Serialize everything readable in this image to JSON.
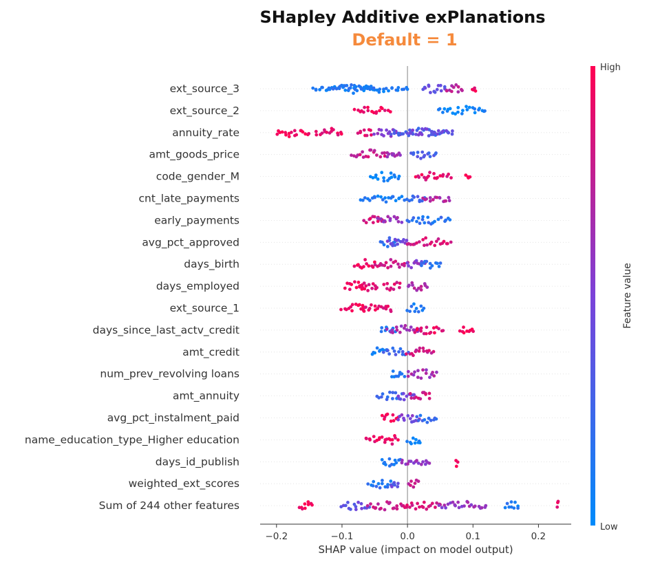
{
  "title": "SHapley Additive exPlanations",
  "subtitle": "Default = 1",
  "colors": {
    "title": "#111111",
    "subtitle": "#f58a3c",
    "high": "#ff0052",
    "low": "#008bfb",
    "zero_line": "#999999",
    "grid": "#dddddd",
    "text": "#333333"
  },
  "chart_data": {
    "type": "scatter",
    "subtype": "beeswarm",
    "xlabel": "SHAP value (impact on model output)",
    "xlim": [
      -0.225,
      0.25
    ],
    "xticks": [
      -0.2,
      -0.1,
      0.0,
      0.1,
      0.2
    ],
    "xtick_labels": [
      "−0.2",
      "−0.1",
      "0.0",
      "0.1",
      "0.2"
    ],
    "grid": "horizontal dotted",
    "colorbar": {
      "label": "Feature value",
      "high": "High",
      "low": "Low"
    },
    "features": [
      {
        "name": "ext_source_3",
        "clusters": [
          [
            -0.145,
            0.001,
            0.1
          ],
          [
            -0.118,
            -0.052,
            0.13
          ],
          [
            0.022,
            0.058,
            0.38
          ],
          [
            0.058,
            0.085,
            0.74
          ],
          [
            0.1,
            0.102,
            0.95
          ]
        ]
      },
      {
        "name": "ext_source_2",
        "clusters": [
          [
            -0.08,
            -0.028,
            0.93
          ],
          [
            0.048,
            0.12,
            0.06
          ]
        ]
      },
      {
        "name": "annuity_rate",
        "clusters": [
          [
            -0.2,
            -0.15,
            0.97
          ],
          [
            -0.14,
            -0.1,
            0.92
          ],
          [
            -0.075,
            -0.055,
            0.9
          ],
          [
            -0.05,
            -0.01,
            0.55
          ],
          [
            -0.025,
            0.06,
            0.25
          ],
          [
            0.0,
            0.07,
            0.45
          ]
        ]
      },
      {
        "name": "amt_goods_price",
        "clusters": [
          [
            -0.085,
            -0.03,
            0.8
          ],
          [
            -0.03,
            -0.01,
            0.6
          ],
          [
            0.005,
            0.045,
            0.3
          ]
        ]
      },
      {
        "name": "code_gender_M",
        "clusters": [
          [
            -0.055,
            -0.012,
            0.05
          ],
          [
            0.012,
            0.065,
            0.9
          ],
          [
            0.09,
            0.095,
            0.97
          ]
        ]
      },
      {
        "name": "cnt_late_payments",
        "clusters": [
          [
            -0.07,
            -0.005,
            0.12
          ],
          [
            0.0,
            0.025,
            0.25
          ],
          [
            0.025,
            0.065,
            0.7
          ]
        ]
      },
      {
        "name": "early_payments",
        "clusters": [
          [
            -0.065,
            -0.035,
            0.85
          ],
          [
            -0.045,
            -0.01,
            0.6
          ],
          [
            0.0,
            0.065,
            0.18
          ]
        ]
      },
      {
        "name": "avg_pct_approved",
        "clusters": [
          [
            -0.04,
            -0.015,
            0.2
          ],
          [
            -0.03,
            0.0,
            0.45
          ],
          [
            0.0,
            0.065,
            0.85
          ]
        ]
      },
      {
        "name": "days_birth",
        "clusters": [
          [
            -0.08,
            -0.05,
            0.95
          ],
          [
            -0.05,
            0.0,
            0.8
          ],
          [
            0.0,
            0.025,
            0.55
          ],
          [
            0.02,
            0.05,
            0.2
          ]
        ]
      },
      {
        "name": "days_employed",
        "clusters": [
          [
            -0.095,
            -0.065,
            0.97
          ],
          [
            -0.075,
            -0.045,
            0.9
          ],
          [
            -0.035,
            -0.01,
            0.85
          ],
          [
            0.0,
            0.03,
            0.7
          ]
        ]
      },
      {
        "name": "ext_source_1",
        "clusters": [
          [
            -0.1,
            -0.065,
            0.97
          ],
          [
            -0.07,
            -0.04,
            0.92
          ],
          [
            -0.035,
            -0.025,
            0.9
          ],
          [
            0.0,
            0.025,
            0.12
          ]
        ]
      },
      {
        "name": "days_since_last_actv_credit",
        "clusters": [
          [
            -0.04,
            -0.02,
            0.1
          ],
          [
            -0.03,
            0.02,
            0.65
          ],
          [
            0.01,
            0.055,
            0.9
          ],
          [
            0.08,
            0.1,
            0.97
          ]
        ]
      },
      {
        "name": "amt_credit",
        "clusters": [
          [
            -0.055,
            -0.03,
            0.1
          ],
          [
            -0.035,
            0.0,
            0.25
          ],
          [
            0.0,
            0.04,
            0.82
          ]
        ]
      },
      {
        "name": "num_prev_revolving loans",
        "clusters": [
          [
            -0.025,
            -0.005,
            0.1
          ],
          [
            0.0,
            0.045,
            0.65
          ]
        ]
      },
      {
        "name": "amt_annuity",
        "clusters": [
          [
            -0.045,
            -0.01,
            0.2
          ],
          [
            -0.015,
            0.01,
            0.45
          ],
          [
            0.005,
            0.035,
            0.85
          ]
        ]
      },
      {
        "name": "avg_pct_instalment_paid",
        "clusters": [
          [
            -0.04,
            -0.015,
            0.95
          ],
          [
            -0.015,
            0.02,
            0.5
          ],
          [
            0.015,
            0.045,
            0.2
          ]
        ]
      },
      {
        "name": "name_education_type_Higher education",
        "clusters": [
          [
            -0.065,
            -0.03,
            0.93
          ],
          [
            -0.03,
            -0.015,
            0.9
          ],
          [
            0.0,
            0.02,
            0.05
          ]
        ]
      },
      {
        "name": "days_id_publish",
        "clusters": [
          [
            -0.04,
            -0.01,
            0.15
          ],
          [
            -0.01,
            0.035,
            0.6
          ],
          [
            0.075,
            0.075,
            0.97
          ]
        ]
      },
      {
        "name": "weighted_ext_scores",
        "clusters": [
          [
            -0.06,
            -0.02,
            0.15
          ],
          [
            -0.025,
            -0.015,
            0.4
          ],
          [
            0.002,
            0.015,
            0.75
          ]
        ]
      },
      {
        "name": "Sum of 244 other features",
        "clusters": [
          [
            -0.165,
            -0.145,
            0.95
          ],
          [
            -0.1,
            -0.06,
            0.4
          ],
          [
            -0.06,
            0.0,
            0.8
          ],
          [
            0.0,
            0.05,
            0.85
          ],
          [
            0.05,
            0.12,
            0.6
          ],
          [
            0.15,
            0.17,
            0.1
          ],
          [
            0.23,
            0.23,
            0.95
          ]
        ]
      }
    ]
  }
}
